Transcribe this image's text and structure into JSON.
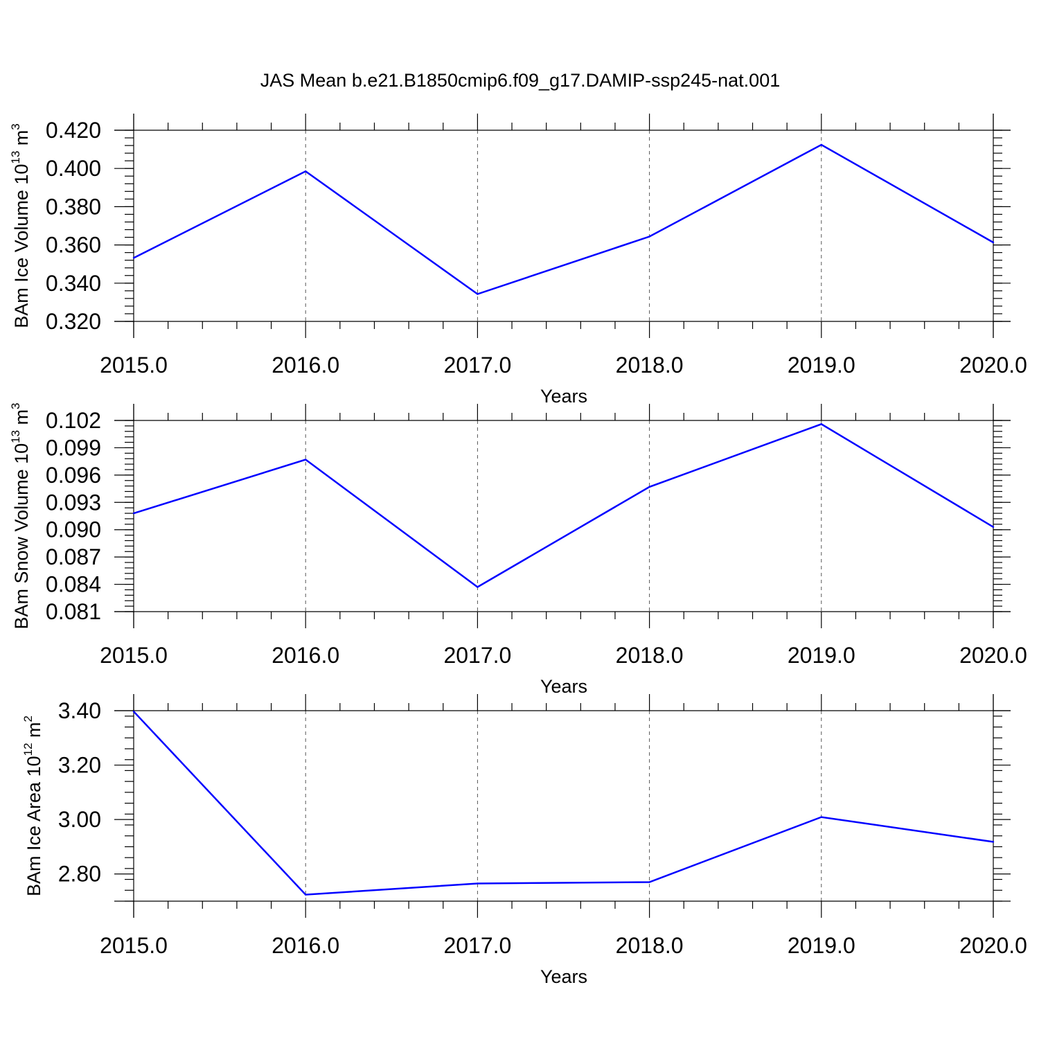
{
  "title": "JAS Mean b.e21.B1850cmip6.f09_g17.DAMIP-ssp245-nat.001",
  "colors": {
    "line": "#0000ff",
    "axes": "#000000",
    "grid": "#555555"
  },
  "chart_data": [
    {
      "type": "line",
      "xlabel": "Years",
      "ylabel": {
        "text": "BAm Ice Volume 10",
        "exp": "13",
        "unit": " m",
        "unit_exp": "3"
      },
      "x": [
        2015,
        2016,
        2017,
        2018,
        2019,
        2020
      ],
      "xticks": [
        "2015.0",
        "2016.0",
        "2017.0",
        "2018.0",
        "2019.0",
        "2020.0"
      ],
      "xlim": [
        2015,
        2020
      ],
      "ylim": [
        0.32,
        0.42
      ],
      "yticks": [
        0.32,
        0.34,
        0.36,
        0.38,
        0.4,
        0.42
      ],
      "yticklabels": [
        "0.320",
        "0.340",
        "0.360",
        "0.380",
        "0.400",
        "0.420"
      ],
      "yminor_step": 0.004,
      "values": [
        0.3532,
        0.3985,
        0.3343,
        0.3644,
        0.4124,
        0.3613
      ],
      "grid": "dashed vertical at major x ticks"
    },
    {
      "type": "line",
      "xlabel": "Years",
      "ylabel": {
        "text": "BAm Snow Volume 10",
        "exp": "13",
        "unit": " m",
        "unit_exp": "3"
      },
      "x": [
        2015,
        2016,
        2017,
        2018,
        2019,
        2020
      ],
      "xticks": [
        "2015.0",
        "2016.0",
        "2017.0",
        "2018.0",
        "2019.0",
        "2020.0"
      ],
      "xlim": [
        2015,
        2020
      ],
      "ylim": [
        0.081,
        0.102
      ],
      "yticks": [
        0.081,
        0.084,
        0.087,
        0.09,
        0.093,
        0.096,
        0.099,
        0.102
      ],
      "yticklabels": [
        "0.081",
        "0.084",
        "0.087",
        "0.090",
        "0.093",
        "0.096",
        "0.099",
        "0.102"
      ],
      "yminor_step": 0.0006,
      "values": [
        0.0918,
        0.0977,
        0.0837,
        0.0947,
        0.1016,
        0.0903
      ],
      "grid": "dashed vertical at major x ticks"
    },
    {
      "type": "line",
      "xlabel": "Years",
      "ylabel": {
        "text": "BAm Ice Area 10",
        "exp": "12",
        "unit": " m",
        "unit_exp": "2"
      },
      "x": [
        2015,
        2016,
        2017,
        2018,
        2019,
        2020
      ],
      "xticks": [
        "2015.0",
        "2016.0",
        "2017.0",
        "2018.0",
        "2019.0",
        "2020.0"
      ],
      "xlim": [
        2015,
        2020
      ],
      "ylim": [
        2.7,
        3.4
      ],
      "yticks": [
        2.8,
        3.0,
        3.2,
        3.4
      ],
      "yticklabels": [
        "2.80",
        "3.00",
        "3.20",
        "3.40"
      ],
      "yminor_step": 0.04,
      "values": [
        3.397,
        2.724,
        2.765,
        2.77,
        3.009,
        2.918
      ],
      "grid": "dashed vertical at major x ticks"
    }
  ]
}
